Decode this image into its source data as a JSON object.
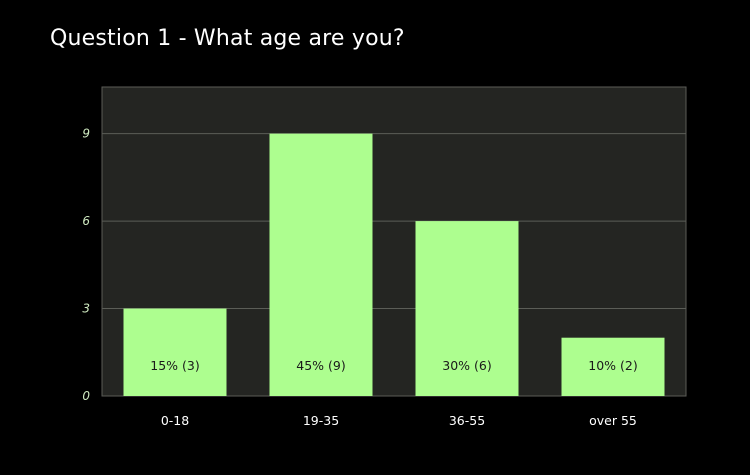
{
  "colors": {
    "background": "#000000",
    "plot_background": "#242522",
    "bar": "#adfe8f",
    "gridline": "#5b5d57",
    "title": "#ffffff"
  },
  "chart_data": {
    "type": "bar",
    "title": "Question 1 - What age are you?",
    "xlabel": "",
    "ylabel": "",
    "categories": [
      "0-18",
      "19-35",
      "36-55",
      "over 55"
    ],
    "values": [
      3,
      9,
      6,
      2
    ],
    "data_labels": [
      "15% (3)",
      "45% (9)",
      "30% (6)",
      "10% (2)"
    ],
    "yticks": [
      0,
      3,
      6,
      9
    ],
    "ylim": [
      0,
      10.6
    ],
    "grid": true,
    "legend": "none"
  }
}
